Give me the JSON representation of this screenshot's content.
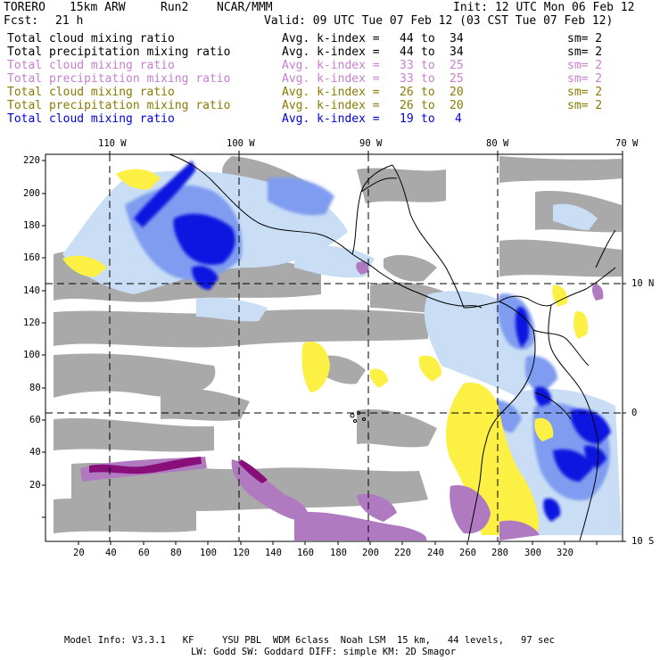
{
  "header": {
    "model": "TORERO",
    "resolution": "15km ARW",
    "run": "Run2",
    "org": "NCAR/MMM",
    "init": "Init: 12 UTC Mon 06 Feb 12",
    "fcst_label": "Fcst:",
    "fcst_value": "21 h",
    "valid": "Valid: 09 UTC Tue 07 Feb 12 (03 CST Tue 07 Feb 12)"
  },
  "fields": [
    {
      "name": "Total cloud mixing ratio",
      "kindex_label": "Avg. k-index =",
      "k_from": "44",
      "to": "to",
      "k_to": "34",
      "sm": "sm= 2",
      "color": "#000000"
    },
    {
      "name": "Total precipitation mixing ratio",
      "kindex_label": "Avg. k-index =",
      "k_from": "44",
      "to": "to",
      "k_to": "34",
      "sm": "sm= 2",
      "color": "#000000"
    },
    {
      "name": "Total cloud mixing ratio",
      "kindex_label": "Avg. k-index =",
      "k_from": "33",
      "to": "to",
      "k_to": "25",
      "sm": "sm= 2",
      "color": "#c77fcf"
    },
    {
      "name": "Total precipitation mixing ratio",
      "kindex_label": "Avg. k-index =",
      "k_from": "33",
      "to": "to",
      "k_to": "25",
      "sm": "sm= 2",
      "color": "#c77fcf"
    },
    {
      "name": "Total cloud mixing ratio",
      "kindex_label": "Avg. k-index =",
      "k_from": "26",
      "to": "to",
      "k_to": "20",
      "sm": "sm= 2",
      "color": "#8a7a00"
    },
    {
      "name": "Total precipitation mixing ratio",
      "kindex_label": "Avg. k-index =",
      "k_from": "26",
      "to": "to",
      "k_to": "20",
      "sm": "sm= 2",
      "color": "#8a7a00"
    },
    {
      "name": "Total cloud mixing ratio",
      "kindex_label": "Avg. k-index =",
      "k_from": "19",
      "to": "to",
      "k_to": "4",
      "sm": "",
      "color": "#0000e0"
    }
  ],
  "axes": {
    "top_lon": [
      "110 W",
      "100 W",
      "90 W",
      "80 W",
      "70 W"
    ],
    "right_lat": [
      "10 N",
      "0",
      "10 S"
    ],
    "left_y": [
      "220",
      "200",
      "180",
      "160",
      "140",
      "120",
      "100",
      "80",
      "60",
      "40",
      "20"
    ],
    "bottom_x": [
      "20",
      "40",
      "60",
      "80",
      "100",
      "120",
      "140",
      "160",
      "180",
      "200",
      "220",
      "240",
      "260",
      "280",
      "300",
      "320"
    ]
  },
  "footer": {
    "line1": "Model Info: V3.3.1   KF     YSU PBL  WDM 6class  Noah LSM  15 km,   44 levels,   97 sec",
    "line2": "LW: Godd SW: Goddard DIFF: simple KM: 2D Smagor"
  },
  "colors": {
    "gray": "#a9a9a9",
    "light_blue": "#c9def5",
    "mid_blue": "#7f9cf0",
    "dark_blue": "#0a14e0",
    "yellow": "#fbf043",
    "light_purple": "#b07ac0",
    "dark_purple": "#880e7a"
  }
}
